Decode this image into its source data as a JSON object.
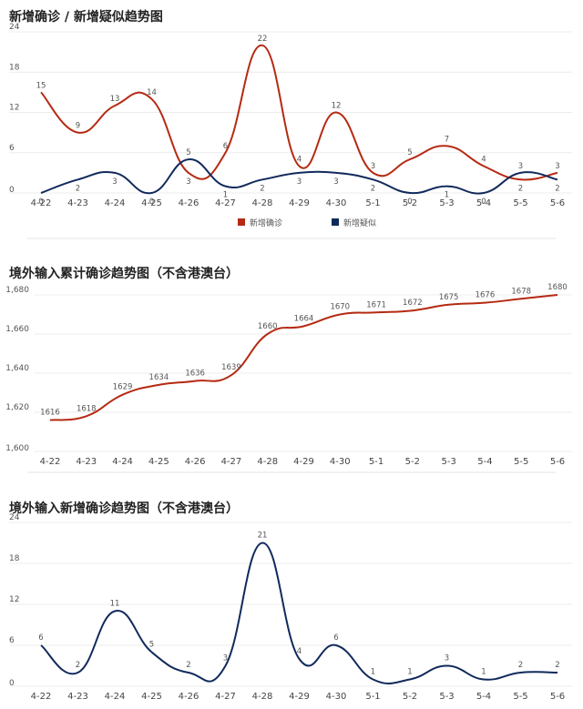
{
  "chart_data": [
    {
      "type": "line",
      "title": "新增确诊 / 新增疑似趋势图",
      "categories": [
        "4-22",
        "4-23",
        "4-24",
        "4-25",
        "4-26",
        "4-27",
        "4-28",
        "4-29",
        "4-30",
        "5-1",
        "5-2",
        "5-3",
        "5-4",
        "5-5",
        "5-6"
      ],
      "ylim": [
        0,
        24
      ],
      "yticks": [
        0,
        6,
        12,
        18,
        24
      ],
      "grid": true,
      "legend": "bottom",
      "series": [
        {
          "name": "新增确诊",
          "color": "#b52a12",
          "values": [
            15,
            9,
            13,
            14,
            3,
            6,
            22,
            4,
            12,
            3,
            5,
            7,
            4,
            2,
            3
          ]
        },
        {
          "name": "新增疑似",
          "color": "#112a5c",
          "values": [
            0,
            2,
            3,
            0,
            5,
            1,
            2,
            3,
            3,
            2,
            0,
            1,
            0,
            3,
            2
          ]
        }
      ]
    },
    {
      "type": "line",
      "title": "境外输入累计确诊趋势图（不含港澳台）",
      "categories": [
        "4-22",
        "4-23",
        "4-24",
        "4-25",
        "4-26",
        "4-27",
        "4-28",
        "4-29",
        "4-30",
        "5-1",
        "5-2",
        "5-3",
        "5-4",
        "5-5",
        "5-6"
      ],
      "ylim": [
        1600,
        1680
      ],
      "yticks": [
        1600,
        1620,
        1640,
        1660,
        1680
      ],
      "ytick_labels": [
        "1,600",
        "1,620",
        "1,640",
        "1,660",
        "1,680"
      ],
      "grid": true,
      "series": [
        {
          "color": "#b52a12",
          "values": [
            1616,
            1618,
            1629,
            1634,
            1636,
            1639,
            1660,
            1664,
            1670,
            1671,
            1672,
            1675,
            1676,
            1678,
            1680
          ]
        }
      ]
    },
    {
      "type": "line",
      "title": "境外输入新增确诊趋势图（不含港澳台）",
      "categories": [
        "4-22",
        "4-23",
        "4-24",
        "4-25",
        "4-26",
        "4-27",
        "4-28",
        "4-29",
        "4-30",
        "5-1",
        "5-2",
        "5-3",
        "5-4",
        "5-5",
        "5-6"
      ],
      "ylim": [
        0,
        24
      ],
      "yticks": [
        0,
        6,
        12,
        18,
        24
      ],
      "grid": true,
      "series": [
        {
          "color": "#112a5c",
          "values": [
            6,
            2,
            11,
            5,
            2,
            3,
            21,
            4,
            6,
            1,
            1,
            3,
            1,
            2,
            2
          ]
        }
      ]
    }
  ]
}
